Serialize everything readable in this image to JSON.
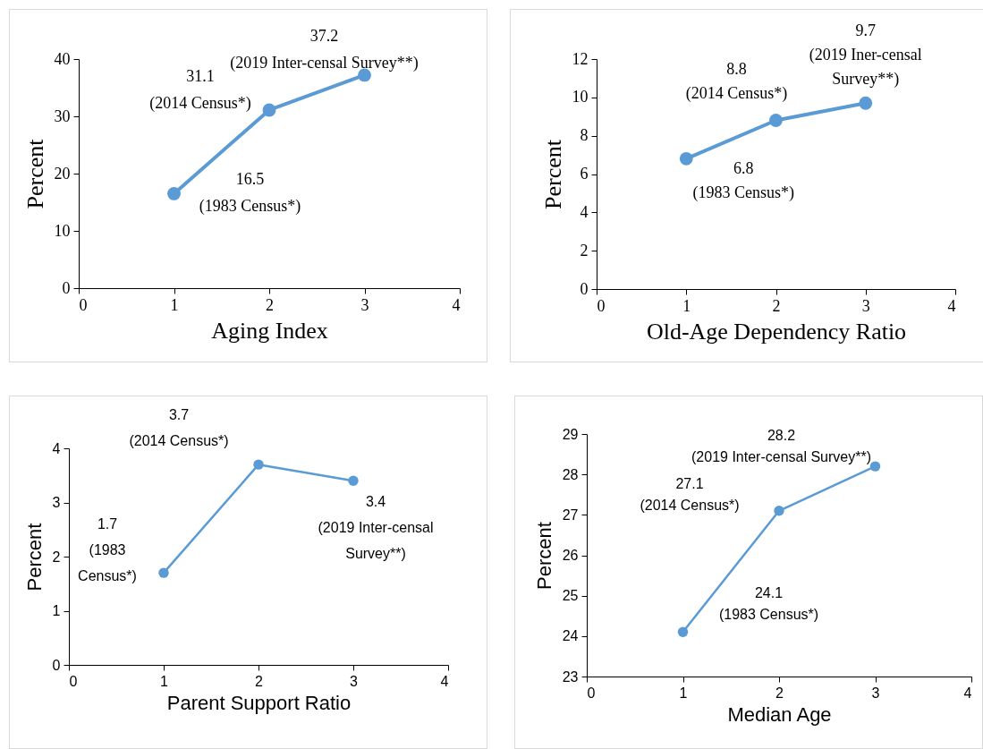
{
  "chart_data": [
    {
      "type": "line",
      "xlabel": "Aging Index",
      "ylabel": "Percent",
      "x": [
        1,
        2,
        3
      ],
      "series": [
        {
          "color": "#5b9bd5",
          "values": [
            16.5,
            31.1,
            37.2
          ]
        }
      ],
      "xlim": [
        0,
        4
      ],
      "xticks": [
        0,
        1,
        2,
        3,
        4
      ],
      "ylim": [
        0,
        40
      ],
      "yticks": [
        0,
        10,
        20,
        30,
        40
      ],
      "marker": "circle",
      "grid": false,
      "annotations": [
        {
          "text": "16.5\n(1983 Census*)",
          "x": 1,
          "y": 16.5
        },
        {
          "text": "31.1\n(2014 Census*)",
          "x": 2,
          "y": 31.1
        },
        {
          "text": "37.2\n(2019 Inter-censal Survey**)",
          "x": 3,
          "y": 37.2
        }
      ]
    },
    {
      "type": "line",
      "xlabel": "Old-Age Dependency Ratio",
      "ylabel": "Percent",
      "x": [
        1,
        2,
        3
      ],
      "series": [
        {
          "color": "#5b9bd5",
          "values": [
            6.8,
            8.8,
            9.7
          ]
        }
      ],
      "xlim": [
        0,
        4
      ],
      "xticks": [
        0,
        1,
        2,
        3,
        4
      ],
      "ylim": [
        0,
        12
      ],
      "yticks": [
        0,
        2,
        4,
        6,
        8,
        10,
        12
      ],
      "marker": "circle",
      "grid": false,
      "annotations": [
        {
          "text": "6.8\n(1983 Census*)",
          "x": 1,
          "y": 6.8
        },
        {
          "text": "8.8\n(2014 Census*)",
          "x": 2,
          "y": 8.8
        },
        {
          "text": "9.7\n(2019 Iner-censal\nSurvey**)",
          "x": 3,
          "y": 9.7
        }
      ]
    },
    {
      "type": "line",
      "xlabel": "Parent Support Ratio",
      "ylabel": "Percent",
      "x": [
        1,
        2,
        3
      ],
      "series": [
        {
          "color": "#5b9bd5",
          "values": [
            1.7,
            3.7,
            3.4
          ]
        }
      ],
      "xlim": [
        0,
        4
      ],
      "xticks": [
        0,
        1,
        2,
        3,
        4
      ],
      "ylim": [
        0,
        4
      ],
      "yticks": [
        0,
        1,
        2,
        3,
        4
      ],
      "marker": "circle",
      "grid": false,
      "annotations": [
        {
          "text": "1.7\n(1983\nCensus*)",
          "x": 1,
          "y": 1.7
        },
        {
          "text": "3.7\n(2014 Census*)",
          "x": 2,
          "y": 3.7
        },
        {
          "text": "3.4\n(2019 Inter-censal\nSurvey**)",
          "x": 3,
          "y": 3.4
        }
      ]
    },
    {
      "type": "line",
      "xlabel": "Median Age",
      "ylabel": "Percent",
      "x": [
        1,
        2,
        3
      ],
      "series": [
        {
          "color": "#5b9bd5",
          "values": [
            24.1,
            27.1,
            28.2
          ]
        }
      ],
      "xlim": [
        0,
        4
      ],
      "xticks": [
        0,
        1,
        2,
        3,
        4
      ],
      "ylim": [
        23,
        29
      ],
      "yticks": [
        23,
        24,
        25,
        26,
        27,
        28,
        29
      ],
      "marker": "circle",
      "grid": false,
      "annotations": [
        {
          "text": "24.1\n(1983 Census*)",
          "x": 1,
          "y": 24.1
        },
        {
          "text": "27.1\n(2014 Census*)",
          "x": 2,
          "y": 27.1
        },
        {
          "text": "28.2\n(2019 Inter-censal Survey**)",
          "x": 3,
          "y": 28.2
        }
      ]
    }
  ]
}
